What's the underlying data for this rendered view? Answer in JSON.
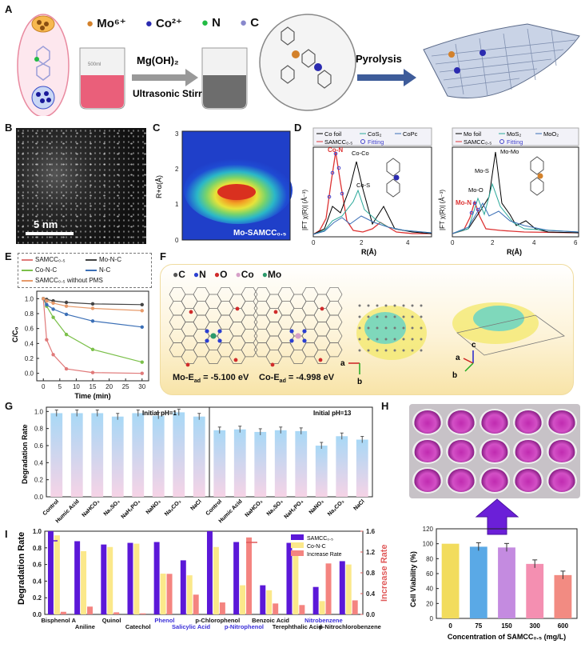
{
  "panels": {
    "a": "A",
    "b": "B",
    "c": "C",
    "d": "D",
    "e": "E",
    "f": "F",
    "g": "G",
    "h": "H",
    "i": "I"
  },
  "panelA": {
    "ions": [
      "Mo⁶⁺",
      "Co²⁺",
      "N",
      "C"
    ],
    "ion_colors": [
      "#d3812b",
      "#2b2bb0",
      "#22bb44",
      "#8888cc"
    ],
    "reagent": "Mg(OH)₂",
    "process": "Ultrasonic Stirring",
    "step2": "Pyrolysis",
    "beaker_label": "500ml"
  },
  "panelB": {
    "scale": "5 nm"
  },
  "panelC": {
    "ylabel": "R+α(Å)",
    "label": "Mo-SAMCC₀.₅",
    "yticks": [
      "0",
      "1",
      "2",
      "3"
    ]
  },
  "panelD": {
    "left": {
      "legend": [
        "Co foil",
        "CoS₂",
        "CoPc",
        "SAMCC₀.₅",
        "Fitting"
      ],
      "ylabel": "|FT χ(R)| (Å⁻³)",
      "xlabel": "R(Å)",
      "xticks": [
        "0",
        "2",
        "4"
      ],
      "peaks": [
        "Co-N",
        "Co-Co",
        "Co-S"
      ]
    },
    "right": {
      "legend": [
        "Mo foil",
        "MoS₂",
        "MoO₂",
        "SAMCC₀.₅",
        "Fitting"
      ],
      "ylabel": "|FT χ(R)| (Å⁻³)",
      "xlabel": "R(Å)",
      "xticks": [
        "0",
        "2",
        "4",
        "6"
      ],
      "peaks": [
        "Mo-Mo",
        "Mo-S",
        "Mo-O",
        "Mo-N"
      ]
    }
  },
  "panelF": {
    "atoms": [
      "C",
      "N",
      "O",
      "Co",
      "Mo"
    ],
    "atom_colors": [
      "#555555",
      "#2b3fd0",
      "#d02b2b",
      "#d6a0c8",
      "#2b9a6b"
    ],
    "mo_eads": "Mo-E",
    "co_eads": "Co-E",
    "mo_value": "= -5.100 eV",
    "co_value": "= -4.998 eV",
    "axes": [
      "a",
      "b",
      "a",
      "b",
      "c"
    ]
  },
  "panelH": {
    "ylabel": "Cell Viability (%)",
    "xlabel": "Concentration of SAMCC₀.₅ (mg/L)"
  },
  "chart_data": [
    {
      "id": "E",
      "type": "line",
      "xlabel": "Time (min)",
      "ylabel": "C/C₀",
      "xlim": [
        -2,
        32
      ],
      "ylim": [
        -0.1,
        1.1
      ],
      "xticks": [
        "0",
        "5",
        "10",
        "15",
        "20",
        "25",
        "30"
      ],
      "yticks": [
        "0.0",
        "0.2",
        "0.4",
        "0.6",
        "0.8",
        "1.0"
      ],
      "x": [
        0,
        1,
        3,
        7,
        15,
        30
      ],
      "series": [
        {
          "name": "SAMCC₀.₅",
          "color": "#e07a7a",
          "values": [
            1.0,
            0.45,
            0.25,
            0.06,
            0.01,
            0.0
          ]
        },
        {
          "name": "Mo-N-C",
          "color": "#444444",
          "values": [
            1.0,
            0.99,
            0.97,
            0.95,
            0.93,
            0.92
          ]
        },
        {
          "name": "Co-N-C",
          "color": "#7bc04a",
          "values": [
            1.0,
            0.9,
            0.75,
            0.52,
            0.32,
            0.15
          ]
        },
        {
          "name": "N-C",
          "color": "#3b6fb6",
          "values": [
            1.0,
            0.92,
            0.86,
            0.79,
            0.7,
            0.62
          ]
        },
        {
          "name": "SAMCC₀.₅ without PMS",
          "color": "#e79a6a",
          "values": [
            1.0,
            0.97,
            0.94,
            0.9,
            0.87,
            0.84
          ]
        }
      ]
    },
    {
      "id": "G",
      "type": "bar",
      "ylabel": "Degradation Rate",
      "ylim": [
        0,
        1.05
      ],
      "yticks": [
        "0.0",
        "0.2",
        "0.4",
        "0.6",
        "0.8",
        "1.0"
      ],
      "groups": [
        {
          "label": "Initial pH=1",
          "categories": [
            "Control",
            "Humic Acid",
            "NaHCO₃",
            "Na₂SO₄",
            "NaH₂PO₄",
            "NaNO₃",
            "Na₂CO₃",
            "NaCl"
          ],
          "values": [
            0.98,
            0.98,
            0.98,
            0.94,
            0.98,
            0.95,
            0.99,
            0.94
          ]
        },
        {
          "label": "Initial pH=13",
          "categories": [
            "Control",
            "Humic Acid",
            "NaHCO₃",
            "Na₂SO₄",
            "NaH₂PO₄",
            "NaNO₃",
            "Na₂CO₃",
            "NaCl"
          ],
          "values": [
            0.78,
            0.79,
            0.76,
            0.78,
            0.77,
            0.6,
            0.71,
            0.67
          ]
        }
      ]
    },
    {
      "id": "H",
      "type": "bar",
      "categories": [
        "0",
        "75",
        "150",
        "300",
        "600"
      ],
      "values": [
        100,
        96,
        95,
        73,
        58
      ],
      "colors": [
        "#f2dc5d",
        "#5aa9e6",
        "#c48be0",
        "#f48fb1",
        "#f28b82"
      ],
      "ylabel": "Cell Viability (%)",
      "xlabel": "Concentration of SAMCC₀.₅ (mg/L)",
      "ylim": [
        0,
        120
      ],
      "yticks": [
        "0",
        "20",
        "40",
        "60",
        "80",
        "100",
        "120"
      ]
    },
    {
      "id": "I",
      "type": "bar",
      "ylabel": "Degradation Rate",
      "y2label": "Increase Rate",
      "ylim": [
        0,
        1.0
      ],
      "y2lim": [
        0,
        1.6
      ],
      "yticks": [
        "0.0",
        "0.2",
        "0.4",
        "0.6",
        "0.8",
        "1.0"
      ],
      "y2ticks": [
        "0.0",
        "0.4",
        "0.8",
        "1.2",
        "1.6"
      ],
      "categories": [
        "Bisphenol A",
        "Aniline",
        "Quinol",
        "Catechol",
        "Phenol",
        "Salicylic Acid",
        "p-Chlorophenol",
        "p-Nitrophenol",
        "Benzoic Acid",
        "Terephthalic Acid",
        "Nitrobenzene",
        "p-Nitrochlorobenzene"
      ],
      "highlight": [
        "Phenol",
        "Salicylic Acid",
        "p-Nitrophenol",
        "Nitrobenzene"
      ],
      "series": [
        {
          "name": "SAMCC₀.₅",
          "color": "#5b18d8",
          "values": [
            1.0,
            0.88,
            0.84,
            0.86,
            0.87,
            0.65,
            1.0,
            0.87,
            0.35,
            0.86,
            0.33,
            0.64
          ]
        },
        {
          "name": "Co-N-C",
          "color": "#fbe88a",
          "values": [
            0.95,
            0.76,
            0.81,
            0.85,
            0.49,
            0.47,
            0.81,
            0.35,
            0.29,
            0.73,
            0.16,
            0.6
          ]
        },
        {
          "name": "Increase Rate",
          "color": "#f48480",
          "values": [
            0.05,
            0.15,
            0.04,
            0.02,
            0.78,
            0.38,
            0.23,
            1.48,
            0.21,
            0.18,
            0.98,
            0.27
          ]
        }
      ]
    }
  ]
}
